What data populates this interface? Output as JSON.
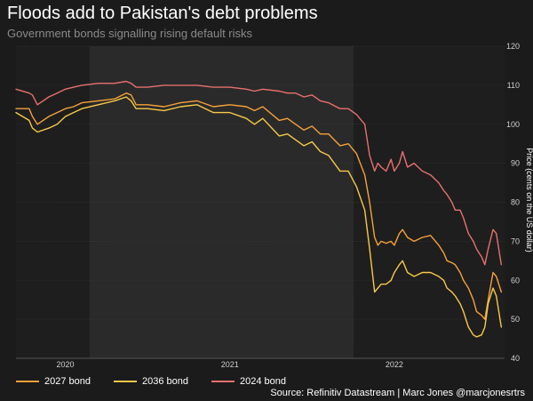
{
  "header": {
    "title": "Floods add to Pakistan's debt problems",
    "subtitle": "Government bonds signalling rising default risks"
  },
  "footer": {
    "source": "Source: Refinitiv Datastream | Marc Jones @marcjonesrtrs"
  },
  "chart_data": {
    "type": "line",
    "title": "Floods add to Pakistan's debt problems",
    "subtitle": "Government bonds signalling rising default risks",
    "ylabel": "Price (cents on the US dollar)",
    "xlabel": "",
    "ylim": [
      40,
      120
    ],
    "xlim": [
      2019.7,
      2022.67
    ],
    "yticks": [
      40,
      50,
      60,
      70,
      80,
      90,
      100,
      110,
      120
    ],
    "xticks": [
      {
        "value": 2020.0,
        "label": "2020"
      },
      {
        "value": 2021.0,
        "label": "2021"
      },
      {
        "value": 2022.0,
        "label": "2022"
      }
    ],
    "shaded_periods": [
      [
        2020.15,
        2021.75
      ]
    ],
    "grid": true,
    "legend_position": "bottom-left",
    "y_axis_side": "right",
    "series": [
      {
        "name": "2027 bond",
        "color": "#f5a13a",
        "x": [
          2019.7,
          2019.78,
          2019.8,
          2019.83,
          2019.9,
          2019.95,
          2020.0,
          2020.05,
          2020.1,
          2020.2,
          2020.3,
          2020.37,
          2020.4,
          2020.43,
          2020.5,
          2020.6,
          2020.7,
          2020.8,
          2020.9,
          2021.0,
          2021.1,
          2021.15,
          2021.2,
          2021.3,
          2021.35,
          2021.4,
          2021.45,
          2021.5,
          2021.55,
          2021.6,
          2021.67,
          2021.72,
          2021.77,
          2021.82,
          2021.85,
          2021.88,
          2021.9,
          2021.92,
          2021.95,
          2021.98,
          2022.0,
          2022.03,
          2022.05,
          2022.08,
          2022.12,
          2022.17,
          2022.22,
          2022.27,
          2022.3,
          2022.32,
          2022.35,
          2022.37,
          2022.4,
          2022.42,
          2022.45,
          2022.48,
          2022.5,
          2022.53,
          2022.55,
          2022.57,
          2022.6,
          2022.62,
          2022.65
        ],
        "y": [
          104,
          104,
          102,
          100,
          102,
          103,
          104,
          104.5,
          105.5,
          106,
          106.5,
          108,
          107.5,
          105,
          105,
          104.5,
          105.5,
          106,
          104.5,
          105,
          104.5,
          103.5,
          104.5,
          101,
          101.5,
          100,
          98.5,
          99.5,
          97.5,
          97.5,
          94.5,
          95,
          92.5,
          87,
          80,
          71,
          69,
          70,
          69.5,
          70,
          69,
          72,
          73,
          71,
          70,
          71,
          71.5,
          69,
          67,
          65,
          64.5,
          64,
          62,
          60,
          58,
          55,
          52,
          51,
          50,
          55,
          62,
          61,
          57
        ]
      },
      {
        "name": "2036 bond",
        "color": "#f7c948",
        "x": [
          2019.7,
          2019.78,
          2019.8,
          2019.83,
          2019.9,
          2019.95,
          2020.0,
          2020.05,
          2020.1,
          2020.2,
          2020.3,
          2020.37,
          2020.4,
          2020.43,
          2020.5,
          2020.6,
          2020.7,
          2020.8,
          2020.9,
          2021.0,
          2021.1,
          2021.15,
          2021.2,
          2021.3,
          2021.35,
          2021.4,
          2021.45,
          2021.5,
          2021.55,
          2021.6,
          2021.67,
          2021.72,
          2021.77,
          2021.82,
          2021.85,
          2021.88,
          2021.9,
          2021.92,
          2021.95,
          2021.98,
          2022.0,
          2022.03,
          2022.05,
          2022.08,
          2022.12,
          2022.17,
          2022.22,
          2022.27,
          2022.3,
          2022.32,
          2022.35,
          2022.37,
          2022.4,
          2022.42,
          2022.45,
          2022.48,
          2022.5,
          2022.53,
          2022.55,
          2022.57,
          2022.6,
          2022.62,
          2022.65
        ],
        "y": [
          103,
          101,
          99,
          98,
          99,
          100,
          102,
          103,
          104,
          105,
          106,
          107,
          106,
          104,
          104,
          103.5,
          104.5,
          105,
          103,
          103,
          101.5,
          100,
          101.5,
          97,
          97.5,
          96,
          94.5,
          95.5,
          93,
          92,
          88,
          88,
          84,
          78,
          68,
          57,
          58,
          59,
          59,
          60,
          62,
          64,
          65,
          62,
          61,
          62,
          62,
          61,
          60,
          58,
          57,
          56,
          54,
          52,
          48,
          46,
          45.5,
          46,
          48,
          54,
          58,
          56,
          48
        ]
      },
      {
        "name": "2024 bond",
        "color": "#e8706e",
        "x": [
          2019.7,
          2019.78,
          2019.8,
          2019.83,
          2019.9,
          2019.95,
          2020.0,
          2020.05,
          2020.1,
          2020.2,
          2020.3,
          2020.37,
          2020.4,
          2020.43,
          2020.5,
          2020.6,
          2020.7,
          2020.8,
          2020.9,
          2021.0,
          2021.1,
          2021.15,
          2021.2,
          2021.3,
          2021.35,
          2021.4,
          2021.45,
          2021.5,
          2021.55,
          2021.6,
          2021.67,
          2021.72,
          2021.77,
          2021.82,
          2021.85,
          2021.88,
          2021.9,
          2021.92,
          2021.95,
          2021.98,
          2022.0,
          2022.03,
          2022.05,
          2022.08,
          2022.12,
          2022.17,
          2022.22,
          2022.27,
          2022.3,
          2022.32,
          2022.35,
          2022.37,
          2022.4,
          2022.42,
          2022.45,
          2022.48,
          2022.5,
          2022.53,
          2022.55,
          2022.57,
          2022.6,
          2022.62,
          2022.65
        ],
        "y": [
          109,
          108,
          107.5,
          105,
          107,
          108,
          109,
          109.5,
          110,
          110.5,
          110.5,
          111,
          110.5,
          109.5,
          109.5,
          110,
          110,
          110,
          109.5,
          109.5,
          109,
          108.5,
          109,
          108.5,
          108,
          108,
          107,
          107.5,
          106,
          105.5,
          104,
          104,
          102.5,
          100,
          92,
          88,
          90,
          89,
          88,
          91,
          88,
          90,
          93,
          89,
          90,
          88,
          87,
          85,
          83,
          82,
          80,
          78,
          78,
          76,
          72,
          70,
          68,
          66,
          64,
          68,
          73,
          72,
          64
        ]
      }
    ]
  }
}
